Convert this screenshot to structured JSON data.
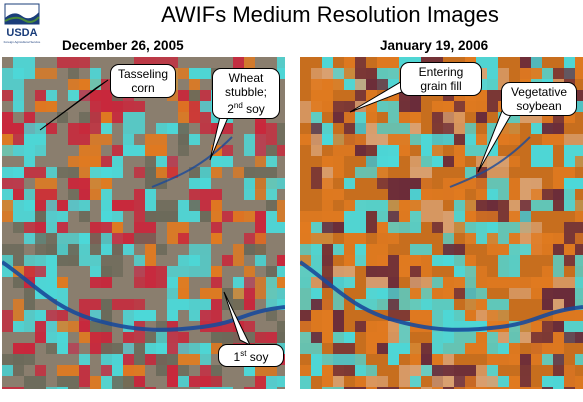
{
  "logo": {
    "text": "USDA",
    "sub": "Foreign Agricultural Service"
  },
  "title": "AWIFs Medium Resolution Images",
  "panels": [
    {
      "date": "December 26, 2005"
    },
    {
      "date": "January 19, 2006"
    }
  ],
  "callouts": {
    "tasseling": "Tasseling corn",
    "wheat_line1": "Wheat",
    "wheat_line2": "stubble;",
    "wheat_line3_num": "2",
    "wheat_line3_sup": "nd",
    "wheat_line3_rest": " soy",
    "first_soy_num": "1",
    "first_soy_sup": "st",
    "first_soy_rest": " soy",
    "entering_line1": "Entering",
    "entering_line2": "grain fill",
    "vegetative_line1": "Vegetative",
    "vegetative_line2": "soybean"
  },
  "colors": {
    "left_base": "#8a7e6e",
    "right_base": "#c76e1e",
    "red_field": "#c8283c",
    "cyan_field": "#4cd8d8",
    "orange_field": "#e07a20",
    "river": "#1a4a9a"
  }
}
